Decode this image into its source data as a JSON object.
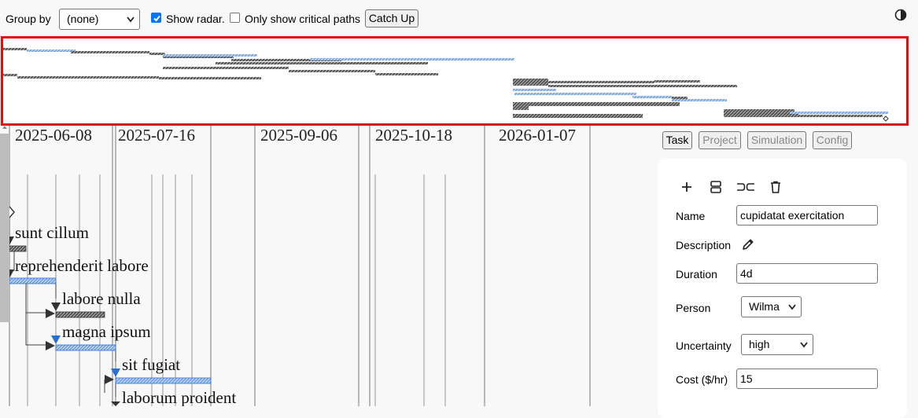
{
  "toolbar": {
    "group_by_label": "Group by",
    "group_by_value": "(none)",
    "show_radar_label": "Show radar.",
    "show_radar_checked": true,
    "critical_paths_label": "Only show critical paths",
    "critical_paths_checked": false,
    "catch_up_label": "Catch Up",
    "contrast_icon": "contrast-icon"
  },
  "timeline": {
    "dates": [
      "2025-06-08",
      "2025-07-16",
      "2025-09-06",
      "2025-10-18",
      "2026-01-07"
    ]
  },
  "tasks": [
    {
      "name": "sunt cillum"
    },
    {
      "name": "reprehenderit labore"
    },
    {
      "name": "labore nulla"
    },
    {
      "name": "magna ipsum"
    },
    {
      "name": "sit fugiat"
    },
    {
      "name": "laborum proident"
    }
  ],
  "panel": {
    "tabs": [
      "Task",
      "Project",
      "Simulation",
      "Config"
    ],
    "active_tab": "Task",
    "tools": [
      "add-icon",
      "split-icon",
      "join-icon",
      "delete-icon"
    ],
    "fields": {
      "name_label": "Name",
      "name_value": "cupidatat exercitation",
      "description_label": "Description",
      "duration_label": "Duration",
      "duration_value": "4d",
      "person_label": "Person",
      "person_value": "Wilma",
      "uncertainty_label": "Uncertainty",
      "uncertainty_value": "high",
      "cost_label": "Cost ($/hr)",
      "cost_value": "15"
    }
  },
  "colors": {
    "accent": "#0075ff",
    "critical_bar": "#3a3a3a",
    "normal_bar": "#6a9be0",
    "radar_border": "#e01010"
  }
}
